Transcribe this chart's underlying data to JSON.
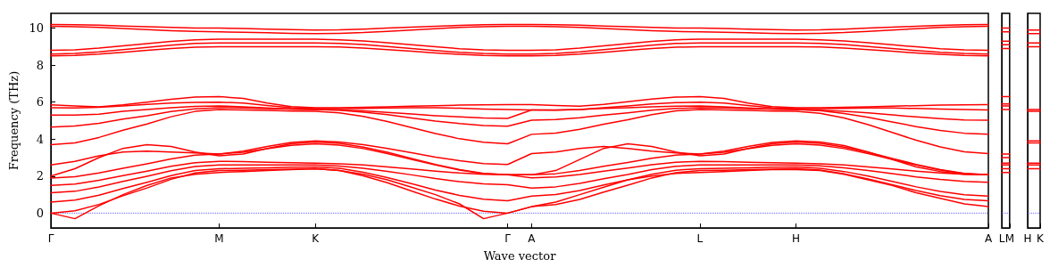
{
  "chart_data": [
    {
      "type": "line",
      "xlabel": "Wave vector",
      "ylabel": "Frequency (THz)",
      "marker": "none",
      "line_style": "solid",
      "categories": [
        "Γ",
        null,
        null,
        null,
        null,
        null,
        null,
        "M",
        null,
        null,
        null,
        "K",
        null,
        null,
        null,
        null,
        null,
        null,
        null,
        "Γ",
        "A",
        null,
        null,
        null,
        null,
        null,
        null,
        "L",
        null,
        null,
        null,
        "H",
        null,
        null,
        null,
        null,
        null,
        null,
        null,
        "A"
      ],
      "ylim": [
        -0.8,
        10.8
      ],
      "yticks": [
        0,
        2,
        4,
        6,
        8,
        10
      ],
      "ref_lines": [
        {
          "axis": "y",
          "value": 0,
          "color": "#0000ff",
          "line_style": "dotted"
        }
      ],
      "series": [
        {
          "color": "#ff0000",
          "values": [
            0,
            -0.3,
            0.4,
            1.0,
            1.5,
            1.9,
            2.1,
            2.2,
            2.25,
            2.3,
            2.35,
            2.4,
            2.3,
            2.1,
            1.8,
            1.4,
            1.0,
            0.5,
            -0.3,
            0,
            0.35,
            0.6,
            1.0,
            1.4,
            1.8,
            2.0,
            2.15,
            2.2,
            2.25,
            2.3,
            2.35,
            2.35,
            2.3,
            2.1,
            1.8,
            1.5,
            1.1,
            0.8,
            0.5,
            0.35
          ]
        },
        {
          "color": "#ff0000",
          "values": [
            0,
            0.13,
            0.47,
            0.94,
            1.36,
            1.83,
            2.17,
            2.3,
            2.32,
            2.35,
            2.38,
            2.4,
            2.3,
            2.02,
            1.64,
            1.2,
            0.76,
            0.38,
            0.1,
            0,
            0.35,
            0.46,
            0.74,
            1.14,
            1.51,
            1.9,
            2.19,
            2.3,
            2.32,
            2.35,
            2.38,
            2.4,
            2.33,
            2.13,
            1.85,
            1.54,
            1.22,
            0.94,
            0.74,
            0.67
          ]
        },
        {
          "color": "#ff0000",
          "values": [
            0.6,
            0.7,
            0.97,
            1.33,
            1.67,
            2.03,
            2.3,
            2.4,
            2.42,
            2.45,
            2.48,
            2.5,
            2.42,
            2.21,
            1.92,
            1.59,
            1.25,
            0.96,
            0.75,
            0.67,
            0.92,
            1.0,
            1.22,
            1.52,
            1.8,
            2.1,
            2.32,
            2.4,
            2.42,
            2.45,
            2.48,
            2.5,
            2.43,
            2.25,
            2.0,
            1.71,
            1.42,
            1.17,
            0.99,
            0.92
          ]
        },
        {
          "color": "#ff0000",
          "values": [
            1.1,
            1.18,
            1.41,
            1.71,
            1.99,
            2.29,
            2.52,
            2.6,
            2.6,
            2.6,
            2.6,
            2.6,
            2.55,
            2.43,
            2.26,
            2.07,
            1.87,
            1.7,
            1.58,
            1.53,
            1.35,
            1.42,
            1.61,
            1.86,
            2.09,
            2.35,
            2.53,
            2.6,
            2.6,
            2.6,
            2.6,
            2.6,
            2.56,
            2.45,
            2.31,
            2.14,
            1.96,
            1.82,
            1.71,
            1.67
          ]
        },
        {
          "color": "#ff0000",
          "values": [
            1.5,
            1.57,
            1.77,
            2.03,
            2.27,
            2.53,
            2.73,
            2.8,
            2.78,
            2.75,
            2.72,
            2.7,
            2.67,
            2.6,
            2.5,
            2.39,
            2.27,
            2.17,
            2.1,
            2.07,
            1.91,
            1.96,
            2.09,
            2.27,
            2.44,
            2.62,
            2.75,
            2.8,
            2.78,
            2.75,
            2.72,
            2.7,
            2.67,
            2.6,
            2.5,
            2.39,
            2.27,
            2.17,
            2.1,
            2.07
          ]
        },
        {
          "color": "#ff0000",
          "values": [
            1.9,
            1.97,
            2.17,
            2.43,
            2.67,
            2.93,
            3.13,
            3.2,
            3.29,
            3.48,
            3.66,
            3.75,
            3.68,
            3.49,
            3.22,
            2.91,
            2.6,
            2.33,
            2.14,
            2.07,
            2.07,
            2.13,
            2.3,
            2.53,
            2.74,
            2.97,
            3.14,
            3.2,
            3.29,
            3.48,
            3.66,
            3.75,
            3.68,
            3.49,
            3.22,
            2.91,
            2.6,
            2.33,
            2.14,
            2.07
          ]
        },
        {
          "color": "#ff0000",
          "values": [
            2.0,
            2.4,
            3.0,
            3.5,
            3.7,
            3.6,
            3.3,
            3.1,
            3.2,
            3.5,
            3.75,
            3.85,
            3.77,
            3.57,
            3.29,
            2.96,
            2.63,
            2.35,
            2.15,
            2.07,
            2.07,
            2.3,
            2.9,
            3.5,
            3.75,
            3.6,
            3.3,
            3.1,
            3.2,
            3.5,
            3.75,
            3.85,
            3.77,
            3.57,
            3.29,
            2.96,
            2.63,
            2.35,
            2.15,
            2.07
          ]
        },
        {
          "color": "#ff0000",
          "values": [
            2.6,
            2.8,
            3.1,
            3.3,
            3.35,
            3.3,
            3.25,
            3.2,
            3.35,
            3.6,
            3.82,
            3.9,
            3.85,
            3.7,
            3.5,
            3.27,
            3.03,
            2.83,
            2.68,
            2.63,
            3.22,
            3.3,
            3.5,
            3.6,
            3.5,
            3.35,
            3.25,
            3.2,
            3.35,
            3.6,
            3.82,
            3.9,
            3.85,
            3.65,
            3.3,
            2.9,
            2.5,
            2.25,
            2.1,
            2.07
          ]
        },
        {
          "color": "#ff0000",
          "values": [
            3.7,
            3.8,
            4.09,
            4.48,
            4.82,
            5.21,
            5.5,
            5.6,
            5.58,
            5.55,
            5.52,
            5.5,
            5.42,
            5.23,
            4.95,
            4.63,
            4.3,
            4.02,
            3.83,
            3.75,
            4.26,
            4.33,
            4.53,
            4.81,
            5.05,
            5.33,
            5.53,
            5.6,
            5.58,
            5.55,
            5.52,
            5.5,
            5.4,
            5.14,
            4.78,
            4.36,
            3.94,
            3.58,
            3.32,
            3.22
          ]
        },
        {
          "color": "#ff0000",
          "values": [
            4.65,
            4.71,
            4.86,
            5.08,
            5.27,
            5.49,
            5.64,
            5.7,
            5.68,
            5.65,
            5.62,
            5.6,
            5.56,
            5.46,
            5.32,
            5.15,
            4.98,
            4.84,
            4.74,
            4.7,
            5.02,
            5.06,
            5.16,
            5.3,
            5.42,
            5.56,
            5.66,
            5.7,
            5.68,
            5.65,
            5.62,
            5.6,
            5.54,
            5.39,
            5.18,
            4.93,
            4.68,
            4.47,
            4.32,
            4.26
          ]
        },
        {
          "color": "#ff0000",
          "values": [
            5.3,
            5.3,
            5.35,
            5.5,
            5.6,
            5.7,
            5.77,
            5.8,
            5.75,
            5.68,
            5.62,
            5.6,
            5.58,
            5.53,
            5.45,
            5.36,
            5.27,
            5.2,
            5.14,
            5.12,
            5.58,
            5.58,
            5.6,
            5.66,
            5.7,
            5.75,
            5.78,
            5.8,
            5.75,
            5.68,
            5.62,
            5.6,
            5.57,
            5.51,
            5.42,
            5.31,
            5.2,
            5.11,
            5.04,
            5.02
          ]
        },
        {
          "color": "#ff0000",
          "values": [
            5.7,
            5.68,
            5.72,
            5.8,
            5.88,
            5.95,
            5.99,
            6.0,
            5.95,
            5.82,
            5.7,
            5.65,
            5.65,
            5.66,
            5.68,
            5.7,
            5.7,
            5.67,
            5.63,
            5.6,
            5.58,
            5.57,
            5.6,
            5.7,
            5.8,
            5.9,
            5.97,
            6.0,
            5.95,
            5.82,
            5.7,
            5.65,
            5.65,
            5.66,
            5.68,
            5.68,
            5.66,
            5.63,
            5.6,
            5.58
          ]
        },
        {
          "color": "#ff0000",
          "values": [
            5.85,
            5.8,
            5.75,
            5.85,
            6.0,
            6.15,
            6.27,
            6.3,
            6.2,
            5.95,
            5.76,
            5.7,
            5.7,
            5.72,
            5.75,
            5.78,
            5.81,
            5.84,
            5.86,
            5.87,
            5.87,
            5.82,
            5.78,
            5.88,
            6.02,
            6.17,
            6.27,
            6.3,
            6.2,
            5.95,
            5.76,
            5.7,
            5.7,
            5.72,
            5.75,
            5.78,
            5.81,
            5.84,
            5.86,
            5.87
          ]
        },
        {
          "color": "#ff0000",
          "values": [
            8.5,
            8.53,
            8.6,
            8.7,
            8.8,
            8.9,
            8.97,
            9.0,
            9.0,
            9.0,
            9.0,
            9.0,
            8.98,
            8.92,
            8.84,
            8.75,
            8.66,
            8.58,
            8.52,
            8.5,
            8.5,
            8.53,
            8.6,
            8.7,
            8.8,
            8.9,
            8.97,
            9.0,
            9.0,
            9.0,
            9.0,
            9.0,
            8.98,
            8.92,
            8.84,
            8.75,
            8.66,
            8.58,
            8.52,
            8.5
          ]
        },
        {
          "color": "#ff0000",
          "values": [
            8.6,
            8.63,
            8.72,
            8.84,
            8.96,
            9.08,
            9.17,
            9.2,
            9.2,
            9.2,
            9.2,
            9.2,
            9.17,
            9.11,
            9.01,
            8.9,
            8.79,
            8.69,
            8.63,
            8.6,
            8.6,
            8.63,
            8.72,
            8.84,
            8.96,
            9.08,
            9.17,
            9.2,
            9.2,
            9.2,
            9.2,
            9.2,
            9.17,
            9.11,
            9.01,
            8.9,
            8.79,
            8.69,
            8.63,
            8.6
          ]
        },
        {
          "color": "#ff0000",
          "values": [
            8.8,
            8.83,
            8.92,
            9.04,
            9.16,
            9.28,
            9.37,
            9.4,
            9.4,
            9.4,
            9.4,
            9.4,
            9.37,
            9.31,
            9.21,
            9.1,
            8.99,
            8.89,
            8.83,
            8.8,
            8.8,
            8.83,
            8.92,
            9.04,
            9.16,
            9.28,
            9.37,
            9.4,
            9.4,
            9.4,
            9.4,
            9.4,
            9.37,
            9.31,
            9.21,
            9.1,
            8.99,
            8.89,
            8.83,
            8.8
          ]
        },
        {
          "color": "#ff0000",
          "values": [
            10.1,
            10.08,
            10.04,
            9.98,
            9.92,
            9.86,
            9.82,
            9.8,
            9.78,
            9.75,
            9.72,
            9.7,
            9.72,
            9.76,
            9.83,
            9.9,
            9.97,
            10.04,
            10.08,
            10.1,
            10.1,
            10.08,
            10.04,
            9.98,
            9.92,
            9.86,
            9.82,
            9.8,
            9.78,
            9.75,
            9.72,
            9.7,
            9.72,
            9.76,
            9.83,
            9.9,
            9.97,
            10.04,
            10.08,
            10.1
          ]
        },
        {
          "color": "#ff0000",
          "values": [
            10.2,
            10.19,
            10.16,
            10.12,
            10.08,
            10.04,
            10.01,
            10.0,
            9.98,
            9.95,
            9.92,
            9.9,
            9.91,
            9.95,
            10.0,
            10.05,
            10.1,
            10.15,
            10.19,
            10.2,
            10.2,
            10.19,
            10.16,
            10.12,
            10.08,
            10.04,
            10.01,
            10.0,
            9.98,
            9.95,
            9.92,
            9.9,
            9.91,
            9.95,
            10.0,
            10.05,
            10.1,
            10.15,
            10.19,
            10.2
          ]
        }
      ]
    },
    {
      "type": "line",
      "marker": "none",
      "line_style": "solid",
      "tick_labels": "x",
      "categories": [
        "L",
        "M"
      ],
      "ylim": [
        -0.8,
        10.8
      ],
      "yticks": [
        0,
        2,
        4,
        6,
        8,
        10
      ],
      "ref_lines": [
        {
          "axis": "y",
          "value": 0,
          "color": "#0000ff",
          "line_style": "dotted"
        }
      ],
      "series": [
        {
          "color": "#ff0000",
          "values": [
            2.2,
            2.2
          ]
        },
        {
          "color": "#ff0000",
          "values": [
            2.4,
            2.4
          ]
        },
        {
          "color": "#ff0000",
          "values": [
            2.6,
            2.6
          ]
        },
        {
          "color": "#ff0000",
          "values": [
            2.7,
            2.7
          ]
        },
        {
          "color": "#ff0000",
          "values": [
            3.0,
            3.0
          ]
        },
        {
          "color": "#ff0000",
          "values": [
            3.2,
            3.2
          ]
        },
        {
          "color": "#ff0000",
          "values": [
            5.6,
            5.6
          ]
        },
        {
          "color": "#ff0000",
          "values": [
            5.8,
            5.8
          ]
        },
        {
          "color": "#ff0000",
          "values": [
            5.9,
            5.9
          ]
        },
        {
          "color": "#ff0000",
          "values": [
            6.3,
            6.3
          ]
        },
        {
          "color": "#ff0000",
          "values": [
            8.9,
            8.9
          ]
        },
        {
          "color": "#ff0000",
          "values": [
            9.1,
            9.1
          ]
        },
        {
          "color": "#ff0000",
          "values": [
            9.3,
            9.3
          ]
        },
        {
          "color": "#ff0000",
          "values": [
            9.8,
            9.8
          ]
        },
        {
          "color": "#ff0000",
          "values": [
            10.0,
            10.0
          ]
        }
      ]
    },
    {
      "type": "line",
      "marker": "none",
      "line_style": "solid",
      "tick_labels": "x",
      "categories": [
        "H",
        "K"
      ],
      "ylim": [
        -0.8,
        10.8
      ],
      "yticks": [
        0,
        2,
        4,
        6,
        8,
        10
      ],
      "ref_lines": [
        {
          "axis": "y",
          "value": 0,
          "color": "#0000ff",
          "line_style": "dotted"
        }
      ],
      "series": [
        {
          "color": "#ff0000",
          "values": [
            2.4,
            2.4
          ]
        },
        {
          "color": "#ff0000",
          "values": [
            2.6,
            2.6
          ]
        },
        {
          "color": "#ff0000",
          "values": [
            2.7,
            2.7
          ]
        },
        {
          "color": "#ff0000",
          "values": [
            3.8,
            3.8
          ]
        },
        {
          "color": "#ff0000",
          "values": [
            3.9,
            3.9
          ]
        },
        {
          "color": "#ff0000",
          "values": [
            5.5,
            5.5
          ]
        },
        {
          "color": "#ff0000",
          "values": [
            5.6,
            5.6
          ]
        },
        {
          "color": "#ff0000",
          "values": [
            9.0,
            9.0
          ]
        },
        {
          "color": "#ff0000",
          "values": [
            9.2,
            9.2
          ]
        },
        {
          "color": "#ff0000",
          "values": [
            9.7,
            9.7
          ]
        },
        {
          "color": "#ff0000",
          "values": [
            9.9,
            9.9
          ]
        }
      ]
    }
  ]
}
